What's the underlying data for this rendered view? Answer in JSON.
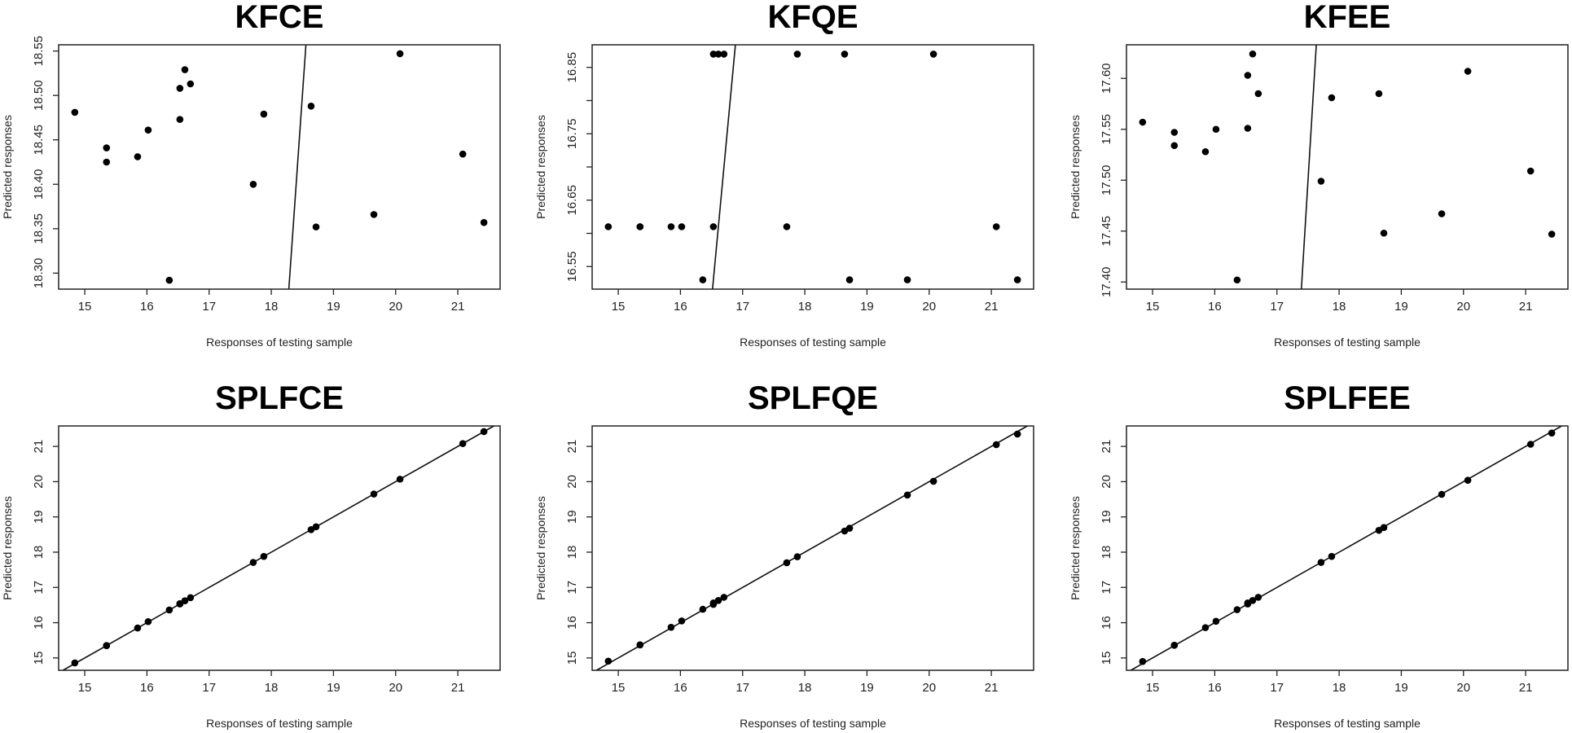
{
  "chart_data": [
    {
      "type": "scatter",
      "title": "KFCE",
      "xlabel": "Responses of testing sample",
      "ylabel": "Predicted responses",
      "xlim": [
        14.58,
        21.68
      ],
      "ylim": [
        18.282,
        18.557
      ],
      "x_ticks": [
        15,
        16,
        17,
        18,
        19,
        20,
        21
      ],
      "x_tick_labels": [
        "15",
        "16",
        "17",
        "18",
        "19",
        "20",
        "21"
      ],
      "y_ticks": [
        18.3,
        18.35,
        18.4,
        18.45,
        18.5,
        18.55
      ],
      "y_tick_labels": [
        "18.30",
        "18.35",
        "18.40",
        "18.45",
        "18.50",
        "18.55"
      ],
      "reference_line": "y = x",
      "grid": false,
      "x": [
        14.84,
        15.35,
        15.35,
        15.85,
        16.02,
        16.36,
        16.53,
        16.53,
        16.61,
        16.7,
        17.71,
        17.88,
        18.64,
        18.72,
        19.65,
        20.07,
        21.08,
        21.42
      ],
      "y": [
        18.481,
        18.441,
        18.425,
        18.431,
        18.461,
        18.292,
        18.508,
        18.473,
        18.529,
        18.513,
        18.4,
        18.479,
        18.488,
        18.352,
        18.366,
        18.547,
        18.434,
        18.357
      ]
    },
    {
      "type": "scatter",
      "title": "KFQE",
      "xlabel": "Responses of testing sample",
      "ylabel": "Predicted responses",
      "xlim": [
        14.58,
        21.68
      ],
      "ylim": [
        16.516,
        16.884
      ],
      "x_ticks": [
        15,
        16,
        17,
        18,
        19,
        20,
        21
      ],
      "x_tick_labels": [
        "15",
        "16",
        "17",
        "18",
        "19",
        "20",
        "21"
      ],
      "y_ticks": [
        16.55,
        16.6,
        16.65,
        16.7,
        16.75,
        16.8,
        16.85
      ],
      "y_tick_labels": [
        "16.55",
        "",
        "16.65",
        "",
        "16.75",
        "",
        "16.85"
      ],
      "reference_line": "y = x",
      "grid": false,
      "x": [
        14.84,
        15.35,
        15.35,
        15.85,
        16.02,
        16.36,
        16.53,
        16.53,
        16.61,
        16.7,
        17.71,
        17.88,
        18.64,
        18.72,
        19.65,
        20.07,
        21.08,
        21.42
      ],
      "y": [
        16.61,
        16.61,
        16.61,
        16.61,
        16.61,
        16.53,
        16.61,
        16.87,
        16.87,
        16.87,
        16.61,
        16.87,
        16.87,
        16.53,
        16.53,
        16.87,
        16.61,
        16.53
      ]
    },
    {
      "type": "scatter",
      "title": "KFEE",
      "xlabel": "Responses of testing sample",
      "ylabel": "Predicted responses",
      "xlim": [
        14.58,
        21.68
      ],
      "ylim": [
        17.393,
        17.633
      ],
      "x_ticks": [
        15,
        16,
        17,
        18,
        19,
        20,
        21
      ],
      "x_tick_labels": [
        "15",
        "16",
        "17",
        "18",
        "19",
        "20",
        "21"
      ],
      "y_ticks": [
        17.4,
        17.45,
        17.5,
        17.55,
        17.6
      ],
      "y_tick_labels": [
        "17.40",
        "17.45",
        "17.50",
        "17.55",
        "17.60"
      ],
      "reference_line": "y = x",
      "grid": false,
      "x": [
        14.84,
        15.35,
        15.35,
        15.85,
        16.02,
        16.36,
        16.53,
        16.53,
        16.61,
        16.7,
        17.71,
        17.88,
        18.64,
        18.72,
        19.65,
        20.07,
        21.08,
        21.42
      ],
      "y": [
        17.557,
        17.547,
        17.534,
        17.528,
        17.55,
        17.402,
        17.603,
        17.551,
        17.624,
        17.585,
        17.499,
        17.581,
        17.585,
        17.448,
        17.467,
        17.607,
        17.509,
        17.447
      ]
    },
    {
      "type": "scatter",
      "title": "SPLFCE",
      "xlabel": "Responses of testing sample",
      "ylabel": "Predicted responses",
      "xlim": [
        14.58,
        21.68
      ],
      "ylim": [
        14.65,
        21.58
      ],
      "x_ticks": [
        15,
        16,
        17,
        18,
        19,
        20,
        21
      ],
      "x_tick_labels": [
        "15",
        "16",
        "17",
        "18",
        "19",
        "20",
        "21"
      ],
      "y_ticks": [
        15,
        16,
        17,
        18,
        19,
        20,
        21
      ],
      "y_tick_labels": [
        "15",
        "16",
        "17",
        "18",
        "19",
        "20",
        "21"
      ],
      "reference_line": "y = x",
      "grid": false,
      "x": [
        14.84,
        15.35,
        15.35,
        15.85,
        16.02,
        16.36,
        16.53,
        16.53,
        16.61,
        16.7,
        17.71,
        17.88,
        18.64,
        18.72,
        19.65,
        20.07,
        21.08,
        21.42
      ],
      "y": [
        14.86,
        15.35,
        15.35,
        15.85,
        16.03,
        16.36,
        16.53,
        16.54,
        16.62,
        16.71,
        17.71,
        17.88,
        18.64,
        18.72,
        19.65,
        20.07,
        21.08,
        21.42
      ]
    },
    {
      "type": "scatter",
      "title": "SPLFQE",
      "xlabel": "Responses of testing sample",
      "ylabel": "Predicted responses",
      "xlim": [
        14.58,
        21.68
      ],
      "ylim": [
        14.65,
        21.58
      ],
      "x_ticks": [
        15,
        16,
        17,
        18,
        19,
        20,
        21
      ],
      "x_tick_labels": [
        "15",
        "16",
        "17",
        "18",
        "19",
        "20",
        "21"
      ],
      "y_ticks": [
        15,
        16,
        17,
        18,
        19,
        20,
        21
      ],
      "y_tick_labels": [
        "15",
        "16",
        "17",
        "18",
        "19",
        "20",
        "21"
      ],
      "reference_line": "y = x",
      "grid": false,
      "x": [
        14.84,
        15.35,
        15.35,
        15.85,
        16.02,
        16.36,
        16.53,
        16.53,
        16.61,
        16.7,
        17.71,
        17.88,
        18.64,
        18.72,
        19.65,
        20.07,
        21.08,
        21.42
      ],
      "y": [
        14.91,
        15.37,
        15.37,
        15.87,
        16.05,
        16.38,
        16.52,
        16.56,
        16.63,
        16.72,
        17.7,
        17.87,
        18.6,
        18.68,
        19.62,
        20.01,
        21.05,
        21.35
      ]
    },
    {
      "type": "scatter",
      "title": "SPLFEE",
      "xlabel": "Responses of testing sample",
      "ylabel": "Predicted responses",
      "xlim": [
        14.58,
        21.68
      ],
      "ylim": [
        14.65,
        21.58
      ],
      "x_ticks": [
        15,
        16,
        17,
        18,
        19,
        20,
        21
      ],
      "x_tick_labels": [
        "15",
        "16",
        "17",
        "18",
        "19",
        "20",
        "21"
      ],
      "y_ticks": [
        15,
        16,
        17,
        18,
        19,
        20,
        21
      ],
      "y_tick_labels": [
        "15",
        "16",
        "17",
        "18",
        "19",
        "20",
        "21"
      ],
      "reference_line": "y = x",
      "grid": false,
      "x": [
        14.84,
        15.35,
        15.35,
        15.85,
        16.02,
        16.36,
        16.53,
        16.53,
        16.61,
        16.7,
        17.71,
        17.88,
        18.64,
        18.72,
        19.65,
        20.07,
        21.08,
        21.42
      ],
      "y": [
        14.9,
        15.36,
        15.36,
        15.86,
        16.04,
        16.37,
        16.53,
        16.56,
        16.63,
        16.72,
        17.71,
        17.88,
        18.62,
        18.7,
        19.64,
        20.04,
        21.06,
        21.38
      ]
    }
  ]
}
